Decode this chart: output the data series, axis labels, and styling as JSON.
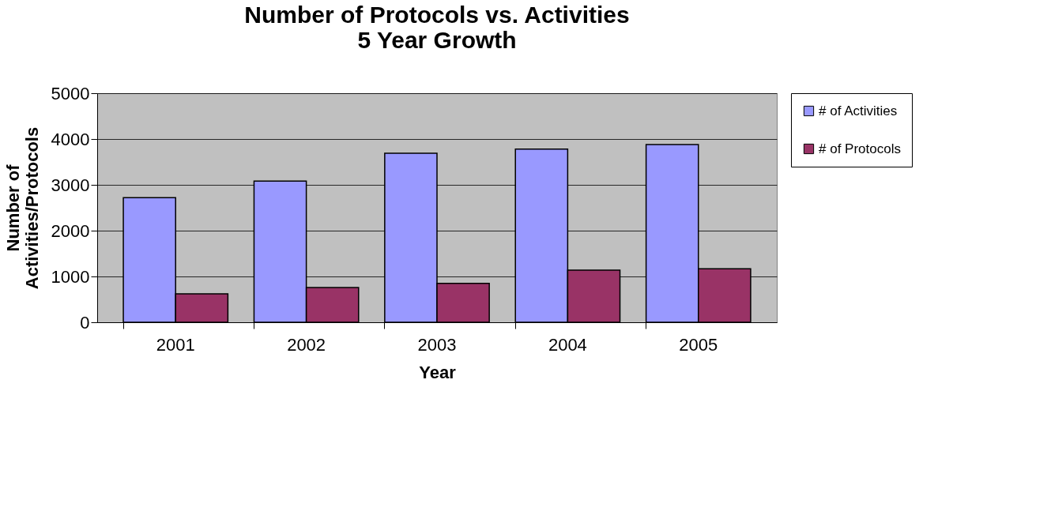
{
  "chart_data": {
    "type": "bar",
    "title": [
      "Number of Protocols vs. Activities",
      "5  Year Growth"
    ],
    "xlabel": "Year",
    "ylabel": [
      "Number of",
      "Activities/Protocols"
    ],
    "categories": [
      "2001",
      "2002",
      "2003",
      "2004",
      "2005"
    ],
    "series": [
      {
        "name": "# of Activities",
        "color": "#9999ff",
        "values": [
          2720,
          3080,
          3690,
          3780,
          3880
        ]
      },
      {
        "name": "# of Protocols",
        "color": "#993366",
        "values": [
          620,
          760,
          850,
          1140,
          1170
        ]
      }
    ],
    "ylim": [
      0,
      5000
    ],
    "yticks": [
      0,
      1000,
      2000,
      3000,
      4000,
      5000
    ],
    "grid": "y",
    "legend": "right"
  }
}
